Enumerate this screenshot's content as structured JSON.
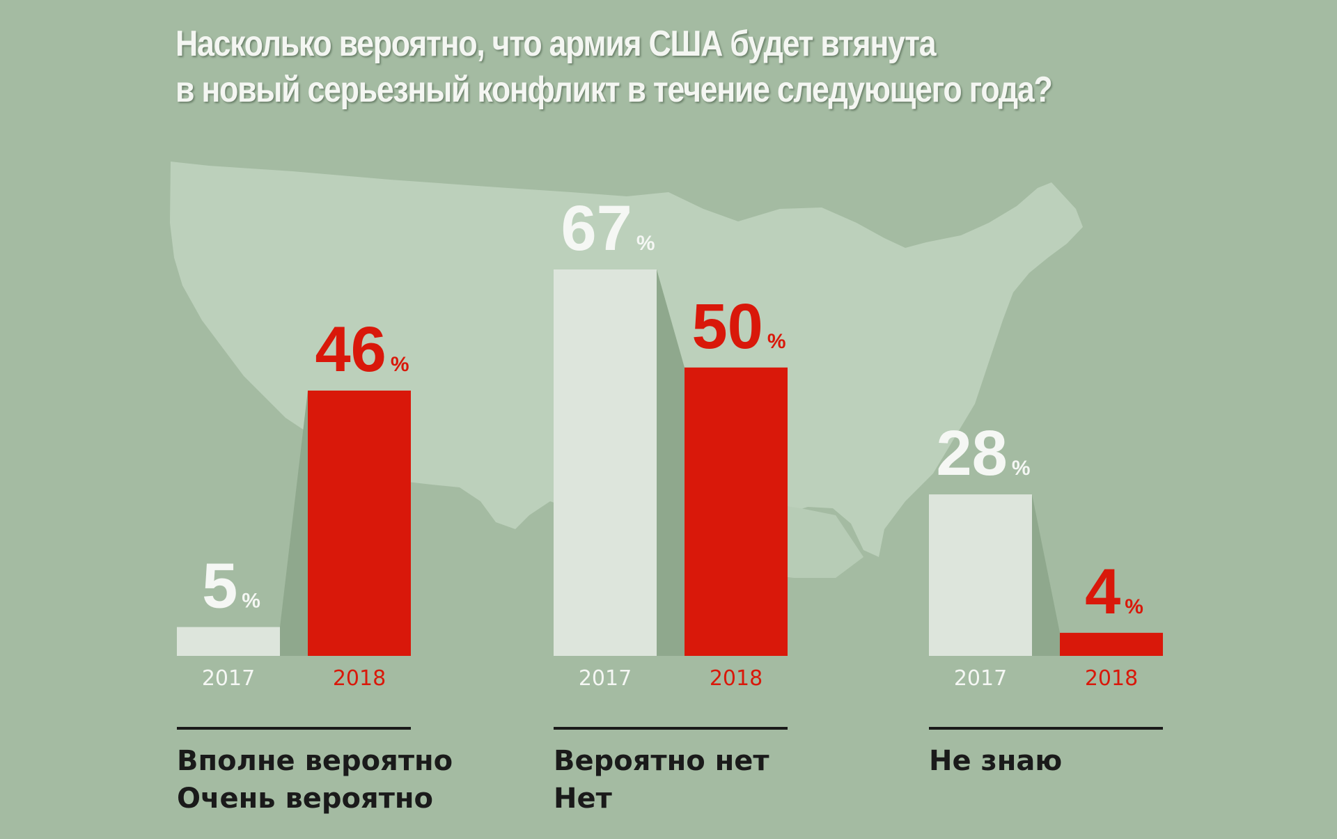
{
  "title": {
    "line1": "Насколько вероятно, что армия США будет втянута",
    "line2": "в новый серьезный конфликт в течение следующего года?"
  },
  "chart_data": {
    "type": "bar",
    "title": "Насколько вероятно, что армия США будет втянута в новый серьезный конфликт в течение следующего года?",
    "categories": [
      [
        "Вполне вероятно",
        "Очень вероятно"
      ],
      [
        "Вероятно нет",
        "Нет"
      ],
      [
        "Не знаю"
      ]
    ],
    "series": [
      {
        "name": "2017",
        "values": [
          5,
          67,
          28
        ],
        "color": "#dde5dc"
      },
      {
        "name": "2018",
        "values": [
          46,
          50,
          4
        ],
        "color": "#d9180a"
      }
    ],
    "unit": "%",
    "ylim": [
      0,
      67
    ],
    "grid": false
  },
  "colors": {
    "background": "#a4bba2",
    "map": "#bdd0bb",
    "bar_2017": "#dde5dc",
    "bar_2018": "#d9180a",
    "connector": "#8fa88d",
    "label_2017": "#f5f7f4",
    "label_2018": "#d9180a"
  }
}
